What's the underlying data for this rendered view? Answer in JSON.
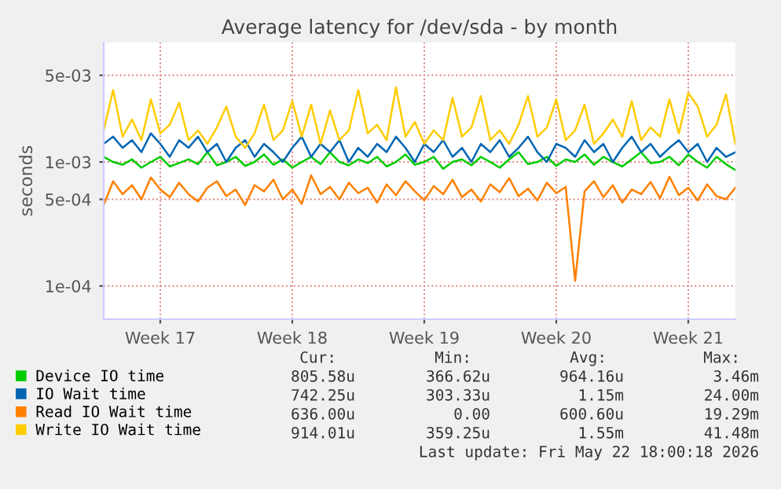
{
  "chart_data": {
    "type": "line",
    "title": "Average latency for /dev/sda - by month",
    "ylabel": "seconds",
    "log": "y",
    "categories": [
      null,
      null,
      null,
      null,
      null,
      null,
      "Week 17",
      null,
      null,
      null,
      null,
      null,
      null,
      null,
      null,
      null,
      null,
      null,
      null,
      null,
      "Week 18",
      null,
      null,
      null,
      null,
      null,
      null,
      null,
      null,
      null,
      null,
      null,
      null,
      null,
      "Week 19",
      null,
      null,
      null,
      null,
      null,
      null,
      null,
      null,
      null,
      null,
      null,
      null,
      null,
      "Week 20",
      null,
      null,
      null,
      null,
      null,
      null,
      null,
      null,
      null,
      null,
      null,
      null,
      null,
      "Week 21",
      null,
      null,
      null,
      null,
      null
    ],
    "ylim": [
      5.4e-05,
      0.0092
    ],
    "yticks": [
      {
        "value": 0.0001,
        "label": "1e-04"
      },
      {
        "value": 0.0005,
        "label": "5e-04"
      },
      {
        "value": 0.001,
        "label": "1e-03"
      },
      {
        "value": 0.005,
        "label": "5e-03"
      }
    ],
    "grid": true,
    "legend": "bottom left",
    "line_style": "solid",
    "marker": "none",
    "series": [
      {
        "name": "Device IO time",
        "color": "#00cc00",
        "values": [
          0.0011,
          0.001,
          0.00095,
          0.00105,
          0.0009,
          0.001,
          0.0011,
          0.00092,
          0.00098,
          0.00105,
          0.00096,
          0.0012,
          0.00094,
          0.001,
          0.0011,
          0.00093,
          0.001,
          0.00115,
          0.00095,
          0.00105,
          0.0009,
          0.001,
          0.0011,
          0.00096,
          0.0012,
          0.001,
          0.00094,
          0.00105,
          0.00098,
          0.0011,
          0.00092,
          0.001,
          0.00115,
          0.00095,
          0.001,
          0.0011,
          0.00088,
          0.001,
          0.00105,
          0.00094,
          0.0011,
          0.001,
          0.0009,
          0.00105,
          0.0012,
          0.00096,
          0.001,
          0.0011,
          0.00093,
          0.00105,
          0.001,
          0.00115,
          0.00095,
          0.0011,
          0.001,
          0.00092,
          0.00105,
          0.0012,
          0.00098,
          0.001,
          0.0011,
          0.00094,
          0.00115,
          0.001,
          0.0009,
          0.0011,
          0.00096,
          0.00086
        ]
      },
      {
        "name": "IO Wait time",
        "color": "#0066b3",
        "values": [
          0.0014,
          0.0016,
          0.0013,
          0.0015,
          0.0012,
          0.0017,
          0.0014,
          0.0011,
          0.0015,
          0.0013,
          0.0016,
          0.0012,
          0.0014,
          0.001,
          0.0013,
          0.0015,
          0.0011,
          0.0014,
          0.0012,
          0.001,
          0.0013,
          0.0016,
          0.0011,
          0.0014,
          0.0012,
          0.0015,
          0.001,
          0.0013,
          0.0011,
          0.0014,
          0.0012,
          0.0016,
          0.0013,
          0.001,
          0.0014,
          0.0012,
          0.0015,
          0.0011,
          0.0013,
          0.001,
          0.0014,
          0.0012,
          0.0015,
          0.0011,
          0.0013,
          0.0016,
          0.0012,
          0.001,
          0.0014,
          0.0013,
          0.0011,
          0.0015,
          0.0012,
          0.0014,
          0.001,
          0.0013,
          0.0016,
          0.0012,
          0.0014,
          0.0011,
          0.0013,
          0.0015,
          0.0012,
          0.0014,
          0.001,
          0.0013,
          0.0011,
          0.0012
        ]
      },
      {
        "name": "Read IO Wait time",
        "color": "#ff8000",
        "values": [
          0.00045,
          0.0007,
          0.00055,
          0.00065,
          0.0005,
          0.00075,
          0.0006,
          0.00052,
          0.00068,
          0.00055,
          0.00048,
          0.00062,
          0.0007,
          0.00053,
          0.0006,
          0.00045,
          0.00065,
          0.00058,
          0.00072,
          0.0005,
          0.0006,
          0.00046,
          0.00078,
          0.00055,
          0.00063,
          0.0005,
          0.00068,
          0.00056,
          0.00062,
          0.00047,
          0.00066,
          0.00054,
          0.0007,
          0.00058,
          0.00049,
          0.00064,
          0.00055,
          0.00072,
          0.00052,
          0.0006,
          0.00048,
          0.00066,
          0.00057,
          0.00074,
          0.00053,
          0.00061,
          0.00049,
          0.00068,
          0.00056,
          0.00063,
          0.00011,
          0.00058,
          0.0007,
          0.00052,
          0.00065,
          0.00047,
          0.0006,
          0.00055,
          0.00069,
          0.00051,
          0.00076,
          0.00054,
          0.00062,
          0.00049,
          0.00066,
          0.00053,
          0.0005,
          0.00062
        ]
      },
      {
        "name": "Write IO Wait time",
        "color": "#ffcc00",
        "values": [
          0.0018,
          0.0038,
          0.0016,
          0.0022,
          0.0015,
          0.0032,
          0.0017,
          0.002,
          0.003,
          0.0015,
          0.0018,
          0.0014,
          0.0019,
          0.0028,
          0.0016,
          0.0013,
          0.0017,
          0.0029,
          0.0015,
          0.0018,
          0.0031,
          0.0016,
          0.0029,
          0.0014,
          0.0026,
          0.0015,
          0.0018,
          0.0038,
          0.0017,
          0.002,
          0.0015,
          0.004,
          0.0016,
          0.0021,
          0.0014,
          0.0018,
          0.0015,
          0.0033,
          0.0016,
          0.0019,
          0.0034,
          0.0015,
          0.0018,
          0.0014,
          0.002,
          0.0034,
          0.0016,
          0.0019,
          0.0032,
          0.0015,
          0.0018,
          0.0029,
          0.0014,
          0.0017,
          0.0022,
          0.0016,
          0.0031,
          0.0015,
          0.0019,
          0.0016,
          0.0032,
          0.0017,
          0.0036,
          0.0028,
          0.0016,
          0.002,
          0.0035,
          0.0014
        ]
      }
    ],
    "annotations": [
      "Cur:",
      "Min:",
      "Avg:",
      "Max:",
      "805.58u",
      "366.62u",
      "964.16u",
      "3.46m",
      "742.25u",
      "303.33u",
      "1.15m",
      "24.00m",
      "636.00u",
      "0.00",
      "600.60u",
      "19.29m",
      "914.01u",
      "359.25u",
      "1.55m",
      "41.48m",
      "Last update: Fri May 22 18:00:18 2026"
    ]
  }
}
